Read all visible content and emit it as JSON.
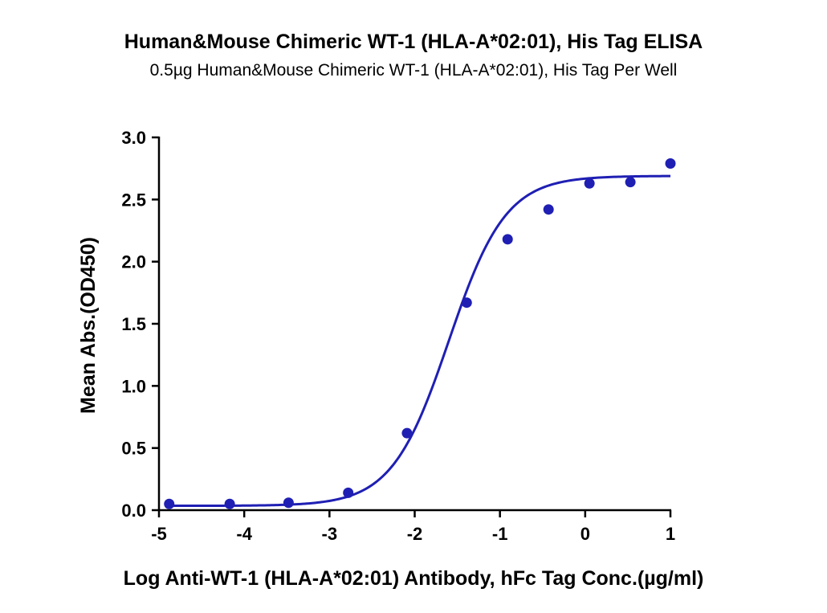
{
  "chart_data": {
    "type": "scatter",
    "title": "Human&Mouse Chimeric WT-1 (HLA-A*02:01), His Tag ELISA",
    "subtitle": "0.5µg Human&Mouse Chimeric WT-1 (HLA-A*02:01), His Tag Per Well",
    "xlabel": "Log Anti-WT-1 (HLA-A*02:01) Antibody, hFc Tag Conc.(µg/ml)",
    "ylabel": "Mean Abs.(OD450)",
    "xlim": [
      -5,
      1
    ],
    "ylim": [
      0,
      3.0
    ],
    "xticks": [
      -5,
      -4,
      -3,
      -2,
      -1,
      0,
      1
    ],
    "xtick_labels": [
      "-5",
      "-4",
      "-3",
      "-2",
      "-1",
      "0",
      "1"
    ],
    "yticks": [
      0,
      0.5,
      1.0,
      1.5,
      2.0,
      2.5,
      3.0
    ],
    "ytick_labels": [
      "0.0",
      "0.5",
      "1.0",
      "1.5",
      "2.0",
      "2.5",
      "3.0"
    ],
    "grid": false,
    "color": "#1f1fb4",
    "series": [
      {
        "x": [
          -4.88,
          -4.17,
          -3.48,
          -2.78,
          -2.09,
          -1.39,
          -0.91,
          -0.43,
          0.05,
          0.53,
          1.0
        ],
        "y": [
          0.05,
          0.05,
          0.06,
          0.14,
          0.62,
          1.67,
          2.18,
          2.42,
          2.63,
          2.64,
          2.79
        ]
      }
    ],
    "fit": {
      "model": "4PL",
      "bottom": 0.035,
      "top": 2.69,
      "log_ec50": -1.6,
      "hill": 1.3
    }
  }
}
